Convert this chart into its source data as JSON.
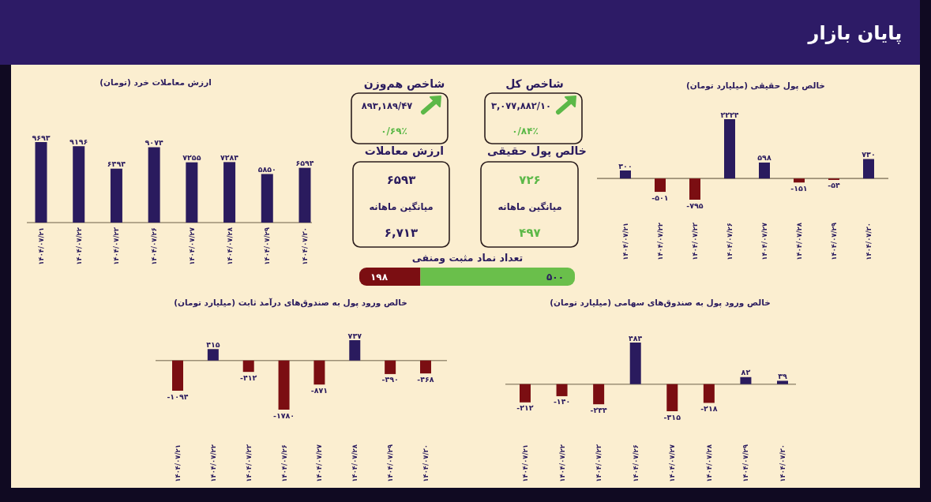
{
  "chart_data": [
    {
      "type": "other",
      "title": "پایان بازار"
    },
    {
      "type": "bar",
      "title": "خالص پول حقیقی (میلیارد تومان)",
      "categories": [
        "۱۴۰۴/۰۷/۲۱",
        "۱۴۰۴/۰۷/۲۲",
        "۱۴۰۴/۰۷/۲۳",
        "۱۴۰۴/۰۷/۲۶",
        "۱۴۰۴/۰۷/۲۷",
        "۱۴۰۴/۰۷/۲۸",
        "۱۴۰۴/۰۷/۲۹",
        "۱۴۰۴/۰۷/۳۰"
      ],
      "values": [
        300,
        -501,
        -795,
        2224,
        598,
        -151,
        -54,
        730
      ],
      "colors": [
        "#2a1b5e",
        "#7b0e12",
        "#7b0e12",
        "#2a1b5e",
        "#2a1b5e",
        "#7b0e12",
        "#7b0e12",
        "#2a1b5e"
      ],
      "value_labels": [
        "۳۰۰",
        "-۵۰۱",
        "-۷۹۵",
        "۲۲۲۴",
        "۵۹۸",
        "-۱۵۱",
        "-۵۴",
        "۷۳۰"
      ],
      "tick_labels": "x"
    },
    {
      "type": "other",
      "title": "شاخص کل",
      "annotations": [
        "۳,۰۷۷,۸۸۲/۱۰",
        "۰/۸۴٪"
      ],
      "colors": [
        "#2a1b5e",
        "#5cb848"
      ]
    },
    {
      "type": "other",
      "title": "شاخص هم‌وزن",
      "annotations": [
        "۸۹۳,۱۸۹/۴۷",
        "۰/۶۹٪"
      ],
      "colors": [
        "#2a1b5e",
        "#5cb848"
      ]
    },
    {
      "type": "other",
      "title": "خالص پول حقیقی",
      "annotations": [
        "۷۲۶",
        "میانگین ماهانه",
        "۴۹۷"
      ],
      "colors": [
        "#5cb848",
        "#2a1b5e",
        "#5cb848"
      ]
    },
    {
      "type": "other",
      "title": "ارزش معاملات",
      "annotations": [
        "۶۵۹۳",
        "میانگین ماهانه",
        "۶,۷۱۳"
      ],
      "colors": [
        "#2a1b5e",
        "#2a1b5e",
        "#2a1b5e"
      ]
    },
    {
      "type": "bar",
      "orientation": "horizontal",
      "stacked": true,
      "title": "تعداد نماد مثبت ومنفی",
      "categories": [
        null
      ],
      "series": [
        {
          "color": "#7b0e12",
          "values": [
            198
          ],
          "value_labels": [
            "۱۹۸"
          ]
        },
        {
          "color": "#6abf4b",
          "values": [
            500
          ],
          "value_labels": [
            "۵۰۰"
          ]
        }
      ],
      "tick_labels": false
    },
    {
      "type": "bar",
      "title": "ارزش معاملات خرد (تومان)",
      "categories": [
        "۱۴۰۴/۰۷/۲۱",
        "۱۴۰۴/۰۷/۲۲",
        "۱۴۰۴/۰۷/۲۳",
        "۱۴۰۴/۰۷/۲۶",
        "۱۴۰۴/۰۷/۲۷",
        "۱۴۰۴/۰۷/۲۸",
        "۱۴۰۴/۰۷/۲۹",
        "۱۴۰۴/۰۷/۳۰"
      ],
      "values": [
        9693,
        9196,
        6494,
        9074,
        7255,
        7284,
        5850,
        6594
      ],
      "color": "#2a1b5e",
      "value_labels": [
        "۹۶۹۳",
        "۹۱۹۶",
        "۶۴۹۴",
        "۹۰۷۴",
        "۷۲۵۵",
        "۷۲۸۴",
        "۵۸۵۰",
        "۶۵۹۴"
      ],
      "tick_labels": "x"
    },
    {
      "type": "bar",
      "title": "خالص ورود پول به صندوق‌های سهامی (میلیارد تومان)",
      "categories": [
        "۱۴۰۴/۰۷/۲۱",
        "۱۴۰۴/۰۷/۲۲",
        "۱۴۰۴/۰۷/۲۳",
        "۱۴۰۴/۰۷/۲۶",
        "۱۴۰۴/۰۷/۲۷",
        "۱۴۰۴/۰۷/۲۸",
        "۱۴۰۴/۰۷/۲۹",
        "۱۴۰۴/۰۷/۳۰"
      ],
      "values": [
        -212,
        -140,
        -234,
        484,
        -315,
        -218,
        82,
        39
      ],
      "colors": [
        "#7b0e12",
        "#7b0e12",
        "#7b0e12",
        "#2a1b5e",
        "#7b0e12",
        "#7b0e12",
        "#2a1b5e",
        "#2a1b5e"
      ],
      "value_labels": [
        "-۲۱۲",
        "-۱۴۰",
        "-۲۳۴",
        "۴۸۴",
        "-۳۱۵",
        "-۲۱۸",
        "۸۲",
        "۳۹"
      ],
      "tick_labels": "x"
    },
    {
      "type": "bar",
      "title": "خالص ورود پول به صندوق‌های درآمد ثابت (میلیارد تومان)",
      "categories": [
        "۱۴۰۴/۰۷/۲۱",
        "۱۴۰۴/۰۷/۲۲",
        "۱۴۰۴/۰۷/۲۳",
        "۱۴۰۴/۰۷/۲۶",
        "۱۴۰۴/۰۷/۲۷",
        "۱۴۰۴/۰۷/۲۸",
        "۱۴۰۴/۰۷/۲۹",
        "۱۴۰۴/۰۷/۳۰"
      ],
      "values": [
        -1094,
        415,
        -412,
        -1780,
        -871,
        737,
        -490,
        -468
      ],
      "colors": [
        "#7b0e12",
        "#2a1b5e",
        "#7b0e12",
        "#7b0e12",
        "#7b0e12",
        "#2a1b5e",
        "#7b0e12",
        "#7b0e12"
      ],
      "value_labels": [
        "-۱۰۹۴",
        "۴۱۵",
        "-۴۱۲",
        "-۱۷۸۰",
        "-۸۷۱",
        "۷۳۷",
        "-۴۹۰",
        "-۴۶۸"
      ],
      "tick_labels": "x"
    }
  ]
}
